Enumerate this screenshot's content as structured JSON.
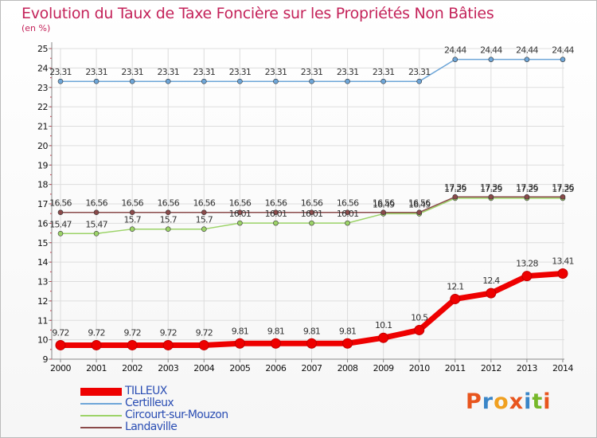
{
  "title": "Evolution du Taux de Taxe Foncière sur les Propriétés Non Bâties",
  "unit_label": "(en %)",
  "logo": {
    "letters": [
      "P",
      "r",
      "o",
      "x",
      "i",
      "t",
      "i"
    ],
    "colors": [
      "#e8551e",
      "#3a86c8",
      "#f0a020",
      "#e8551e",
      "#3a86c8",
      "#77b82a",
      "#e8551e"
    ]
  },
  "chart_data": {
    "type": "line",
    "title": "Evolution du Taux de Taxe Foncière sur les Propriétés Non Bâties",
    "ylabel": "(en %)",
    "xlabel": "",
    "ylim": [
      9,
      25
    ],
    "yticks": [
      9,
      10,
      11,
      12,
      13,
      14,
      15,
      16,
      17,
      18,
      19,
      20,
      21,
      22,
      23,
      24,
      25
    ],
    "x": [
      "2000",
      "2001",
      "2002",
      "2003",
      "2004",
      "2005",
      "2006",
      "2007",
      "2008",
      "2009",
      "2010",
      "2011",
      "2012",
      "2013",
      "2014"
    ],
    "grid": true,
    "legend_position": "bottom-left",
    "series": [
      {
        "name": "TILLEUX",
        "color": "#ee0000",
        "values": [
          9.72,
          9.72,
          9.72,
          9.72,
          9.72,
          9.81,
          9.81,
          9.81,
          9.81,
          10.1,
          10.5,
          12.1,
          12.4,
          13.28,
          13.41
        ],
        "labels": [
          "9.72",
          "9.72",
          "9.72",
          "9.72",
          "9.72",
          "9.81",
          "9.81",
          "9.81",
          "9.81",
          "10.1",
          "10.5",
          "12.1",
          "12.4",
          "13.28",
          "13.41"
        ]
      },
      {
        "name": "Certilleux",
        "color": "#6ea6d8",
        "values": [
          23.31,
          23.31,
          23.31,
          23.31,
          23.31,
          23.31,
          23.31,
          23.31,
          23.31,
          23.31,
          23.31,
          24.44,
          24.44,
          24.44,
          24.44
        ],
        "labels": [
          "23.31",
          "23.31",
          "23.31",
          "23.31",
          "23.31",
          "23.31",
          "23.31",
          "23.31",
          "23.31",
          "23.31",
          "23.31",
          "24.44",
          "24.44",
          "24.44",
          "24.44"
        ]
      },
      {
        "name": "Circourt-sur-Mouzon",
        "color": "#9cd368",
        "values": [
          15.47,
          15.47,
          15.7,
          15.7,
          15.7,
          16.01,
          16.01,
          16.01,
          16.01,
          16.49,
          16.49,
          17.29,
          17.29,
          17.29,
          17.29
        ],
        "labels": [
          "15.47",
          "15.47",
          "15.7",
          "15.7",
          "15.7",
          "16.01",
          "16.01",
          "16.01",
          "16.01",
          "16.49",
          "16.49",
          "17.29",
          "17.29",
          "17.29",
          "17.29"
        ]
      },
      {
        "name": "Landaville",
        "color": "#8a4a4a",
        "values": [
          16.56,
          16.56,
          16.56,
          16.56,
          16.56,
          16.56,
          16.56,
          16.56,
          16.56,
          16.56,
          16.56,
          17.36,
          17.36,
          17.36,
          17.36
        ],
        "labels": [
          "16.56",
          "16.56",
          "16.56",
          "16.56",
          "16.56",
          "16.56",
          "16.56",
          "16.56",
          "16.56",
          "16.56",
          "16.56",
          "17.36",
          "17.36",
          "17.36",
          "17.36"
        ]
      }
    ]
  }
}
